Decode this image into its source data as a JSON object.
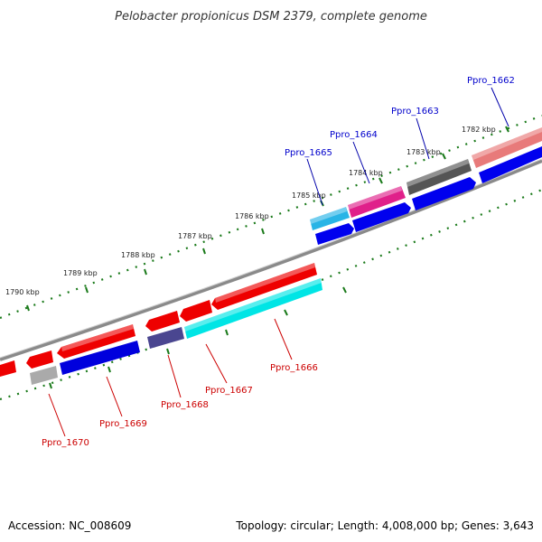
{
  "title": "Pelobacter propionicus DSM 2379, complete genome",
  "footer": {
    "accession": "Accession: NC_008609",
    "summary": "Topology: circular; Length: 4,008,000 bp; Genes: 3,643"
  },
  "colors": {
    "backbone": "#8a8a8a",
    "tick_dots": "#1a7a1a",
    "label_plus_strand": "#0000cc",
    "label_minus_strand": "#cc0000",
    "leader_plus": "#0000aa",
    "leader_minus": "#cc0000"
  },
  "tick_labels": [
    "1782 kbp",
    "1783 kbp",
    "1784 kbp",
    "1785 kbp",
    "1786 kbp",
    "1787 kbp",
    "1788 kbp",
    "1789 kbp",
    "1790 kbp"
  ],
  "top_labels": [
    {
      "name": "Ppro_1662",
      "color": "#0000cc"
    },
    {
      "name": "Ppro_1663",
      "color": "#0000cc"
    },
    {
      "name": "Ppro_1664",
      "color": "#0000cc"
    },
    {
      "name": "Ppro_1665",
      "color": "#0000cc"
    }
  ],
  "bottom_labels": [
    {
      "name": "Ppro_1666",
      "color": "#cc0000"
    },
    {
      "name": "Ppro_1667",
      "color": "#cc0000"
    },
    {
      "name": "Ppro_1668",
      "color": "#cc0000"
    },
    {
      "name": "Ppro_1669",
      "color": "#cc0000"
    },
    {
      "name": "Ppro_1670",
      "color": "#cc0000"
    }
  ],
  "features": [
    {
      "id": "plus-outer-1",
      "ring": "outer",
      "color": "#e87a7a"
    },
    {
      "id": "plus-outer-2",
      "ring": "outer",
      "color": "#555555"
    },
    {
      "id": "plus-outer-3",
      "ring": "outer",
      "color": "#e0208a"
    },
    {
      "id": "plus-outer-4",
      "ring": "outer",
      "color": "#28b4e6"
    },
    {
      "id": "plus-inner-1",
      "ring": "inner",
      "color": "#0000ee"
    },
    {
      "id": "plus-inner-2",
      "ring": "inner",
      "color": "#0000ee"
    },
    {
      "id": "plus-inner-3",
      "ring": "inner",
      "color": "#0000ee"
    },
    {
      "id": "plus-inner-4",
      "ring": "inner",
      "color": "#0000ee"
    },
    {
      "id": "minus-outer-1",
      "ring": "outer",
      "color": "#ee0000"
    },
    {
      "id": "minus-outer-2",
      "ring": "outer",
      "color": "#ee0000"
    },
    {
      "id": "minus-outer-3",
      "ring": "outer",
      "color": "#ee0000"
    },
    {
      "id": "minus-outer-4",
      "ring": "outer",
      "color": "#ee0000"
    },
    {
      "id": "minus-outer-5",
      "ring": "outer",
      "color": "#ee0000"
    },
    {
      "id": "minus-outer-6",
      "ring": "outer",
      "color": "#ee0000"
    },
    {
      "id": "minus-inner-1",
      "ring": "inner",
      "color": "#00e5e5"
    },
    {
      "id": "minus-inner-2",
      "ring": "inner",
      "color": "#4a4690"
    },
    {
      "id": "minus-inner-3",
      "ring": "inner",
      "color": "#0000dd"
    },
    {
      "id": "minus-inner-4",
      "ring": "inner",
      "color": "#aaaaaa"
    }
  ]
}
